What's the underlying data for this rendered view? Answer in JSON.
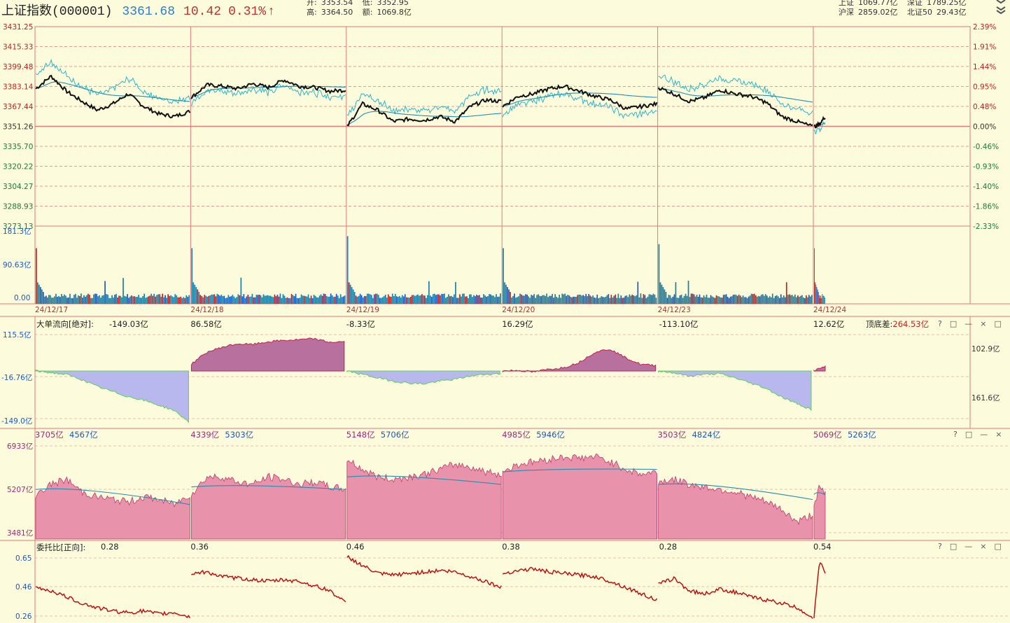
{
  "header": {
    "name": "上证指数(000001)",
    "price": "3361.68",
    "change": "10.42",
    "change_pct": "0.31%",
    "arrow": "↑",
    "open_label": "开:",
    "open": "3353.54",
    "low_label": "低:",
    "low": "3352.95",
    "high_label": "高:",
    "high": "3364.50",
    "amount_label": "额:",
    "amount": "1069.8亿",
    "sh_label": "上证",
    "sh": "1069.77亿",
    "sz_label": "深证",
    "sz": "1789.25亿",
    "hs_label": "沪深",
    "hs": "2859.02亿",
    "bz_label": "北证50",
    "bz": "29.43亿"
  },
  "colors": {
    "background": "#fcfcdc",
    "grid": "#e07a7a",
    "price_line": "#111111",
    "avg_line": "#1f8fb0",
    "up": "#c02020",
    "down": "#1a57c8",
    "volume": "#1a7fa0",
    "flow_pos": "#b8709e",
    "flow_neg": "#b8b8ee",
    "amount_fill": "#e892ac",
    "ratio_line": "#c01010"
  },
  "price_panel": {
    "left_ticks": [
      "3431.25",
      "3415.33",
      "3399.48",
      "3383.14",
      "3367.44",
      "3351.26",
      "3335.70",
      "3320.22",
      "3304.27",
      "3288.93",
      "3273.13"
    ],
    "right_ticks": [
      "2.39%",
      "1.91%",
      "1.44%",
      "0.95%",
      "0.48%",
      "0.00%",
      "-0.46%",
      "-0.93%",
      "-1.40%",
      "-1.86%",
      "-2.33%"
    ]
  },
  "volume_panel": {
    "ticks": [
      "181.3亿",
      "90.63亿",
      "0.00"
    ]
  },
  "dates": [
    "24/12/17",
    "24/12/18",
    "24/12/19",
    "24/12/20",
    "24/12/23",
    "24/12/24"
  ],
  "flow_panel": {
    "title": "大单流向[绝对]:",
    "values": [
      "-149.03亿",
      "86.58亿",
      "-8.33亿",
      "16.29亿",
      "-113.10亿",
      "12.62亿"
    ],
    "diff_label": "顶底差:",
    "diff_value": "264.53亿",
    "left_ticks": [
      "115.5亿",
      "-16.76亿",
      "-149.0亿"
    ],
    "right_ticks": [
      "102.9亿",
      "161.6亿"
    ]
  },
  "amount_panel": {
    "pairs": [
      [
        "3705亿",
        "4567亿"
      ],
      [
        "4339亿",
        "5303亿"
      ],
      [
        "5148亿",
        "5706亿"
      ],
      [
        "4985亿",
        "5946亿"
      ],
      [
        "3503亿",
        "4824亿"
      ],
      [
        "5069亿",
        "5263亿"
      ]
    ],
    "ticks": [
      "6933亿",
      "5207亿",
      "3481亿"
    ]
  },
  "ratio_panel": {
    "title": "委托比[正向]:",
    "values": [
      "0.28",
      "0.36",
      "0.46",
      "0.38",
      "0.28",
      "0.54"
    ],
    "ticks": [
      "0.65",
      "0.46",
      "0.26"
    ]
  },
  "controls": {
    "panel_buttons": "?□—×□",
    "panel_buttons_short": "?□—×"
  },
  "chart_data": {
    "type": "line",
    "title": "上证指数(000001)",
    "x": [
      "24/12/17",
      "24/12/18",
      "24/12/19",
      "24/12/20",
      "24/12/23",
      "24/12/24"
    ],
    "series": [
      {
        "name": "大单流向[绝对]",
        "values": [
          -149.03,
          86.58,
          -8.33,
          16.29,
          -113.1,
          12.62
        ]
      },
      {
        "name": "委托比[正向]",
        "values": [
          0.28,
          0.36,
          0.46,
          0.38,
          0.28,
          0.54
        ]
      }
    ],
    "price_ylim": [
      3273.13,
      3431.25
    ],
    "prev_close": 3351.26,
    "volume_ylim": [
      0,
      181.3
    ],
    "flow_ylim": [
      -149.0,
      115.5
    ],
    "amount_ylim": [
      3481,
      6933
    ],
    "ratio_ylim": [
      0.26,
      0.65
    ],
    "grid": true
  }
}
